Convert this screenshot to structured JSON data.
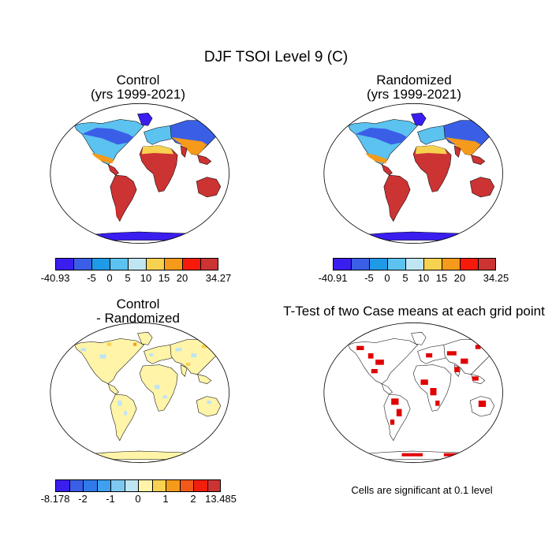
{
  "title": "DJF TSOI Level 9 (C)",
  "panels": {
    "control": {
      "title_line1": "Control",
      "title_line2": "(yrs 1999-2021)"
    },
    "randomized": {
      "title_line1": "Randomized",
      "title_line2": "(yrs 1999-2021)"
    },
    "difference": {
      "title_line1": "Control",
      "title_line2": "- Randomized"
    },
    "ttest": {
      "title": "T-Test of two Case means at each grid point",
      "note": "Cells are significant at 0.1 level"
    }
  },
  "colorbars": {
    "control": {
      "colors": [
        "#3a1ef0",
        "#3a5fe6",
        "#1f9ae6",
        "#5cc2f0",
        "#bfe6f2",
        "#f7d150",
        "#f59a1a",
        "#f51a0a",
        "#cc3333"
      ],
      "tick_labels": [
        "-40.93",
        "-5",
        "0",
        "5",
        "10",
        "15",
        "20",
        "34.27"
      ]
    },
    "randomized": {
      "colors": [
        "#3a1ef0",
        "#3a5fe6",
        "#1f9ae6",
        "#5cc2f0",
        "#bfe6f2",
        "#f7d150",
        "#f59a1a",
        "#f51a0a",
        "#cc3333"
      ],
      "tick_labels": [
        "-40.91",
        "-5",
        "0",
        "5",
        "10",
        "15",
        "20",
        "34.25"
      ]
    },
    "difference": {
      "colors": [
        "#3a1ef0",
        "#3a5fe6",
        "#2f7ae8",
        "#3fa0f0",
        "#7ec8f0",
        "#bfe4f2",
        "#fff4a8",
        "#f7d150",
        "#f59a1a",
        "#f25a1a",
        "#f01e0a",
        "#cc3333"
      ],
      "tick_labels": [
        "-8.178",
        "-2",
        "-1",
        "0",
        "1",
        "2",
        "13.485"
      ]
    }
  },
  "chart_data": [
    {
      "type": "heatmap",
      "title": "Control (yrs 1999-2021)",
      "value_range": [
        -40.93,
        34.27
      ],
      "contour_levels": [
        -5,
        0,
        5,
        10,
        15,
        20
      ]
    },
    {
      "type": "heatmap",
      "title": "Randomized (yrs 1999-2021)",
      "value_range": [
        -40.91,
        34.25
      ],
      "contour_levels": [
        -5,
        0,
        5,
        10,
        15,
        20
      ]
    },
    {
      "type": "heatmap",
      "title": "Control - Randomized",
      "value_range": [
        -8.178,
        13.485
      ],
      "contour_levels": [
        -2,
        -1,
        0,
        1,
        2
      ]
    },
    {
      "type": "heatmap",
      "title": "T-Test of two Case means at each grid point",
      "significance_level": 0.1
    }
  ]
}
